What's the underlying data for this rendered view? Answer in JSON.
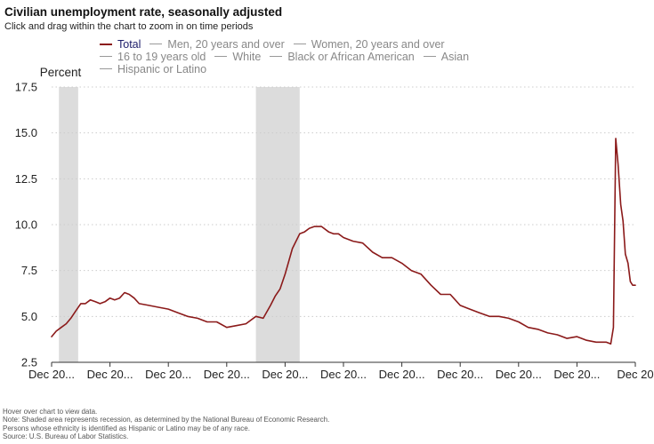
{
  "header": {
    "title": "Civilian unemployment rate, seasonally adjusted",
    "subtitle": "Click and drag within the chart to zoom in on time periods"
  },
  "legend": {
    "rows": [
      [
        {
          "label": "Total",
          "active": true
        },
        {
          "label": "Men, 20 years and over",
          "active": false
        },
        {
          "label": "Women, 20 years and over",
          "active": false
        }
      ],
      [
        {
          "label": "16 to 19 years old",
          "active": false
        },
        {
          "label": "White",
          "active": false
        },
        {
          "label": "Black or African American",
          "active": false
        },
        {
          "label": "Asian",
          "active": false
        }
      ],
      [
        {
          "label": "Hispanic or Latino",
          "active": false
        }
      ]
    ]
  },
  "colors": {
    "series_total": "#8b1a1a",
    "recession_band": "#dcdcdc",
    "gridline": "#cccccc",
    "axis": "#333333",
    "legend_active_text": "#1f1f6b",
    "legend_inactive_text": "#888888"
  },
  "chart_data": {
    "type": "line",
    "ylabel": "Percent",
    "ylim": [
      2.5,
      17.5
    ],
    "yticks": [
      2.5,
      5.0,
      7.5,
      10.0,
      12.5,
      15.0,
      17.5
    ],
    "ytick_labels": [
      "2.5",
      "5.0",
      "7.5",
      "10.0",
      "12.5",
      "15.0",
      "17.5"
    ],
    "xlim": [
      2000.92,
      2020.92
    ],
    "xticks": [
      2000.92,
      2002.92,
      2004.92,
      2006.92,
      2008.92,
      2010.92,
      2012.92,
      2014.92,
      2016.92,
      2018.92,
      2020.92
    ],
    "xtick_labels": [
      "Dec 20...",
      "Dec 20...",
      "Dec 20...",
      "Dec 20...",
      "Dec 20...",
      "Dec 20...",
      "Dec 20...",
      "Dec 20...",
      "Dec 20...",
      "Dec 20...",
      "Dec 20"
    ],
    "grid": true,
    "recessions": [
      [
        2001.17,
        2001.83
      ],
      [
        2007.92,
        2009.42
      ]
    ],
    "series": [
      {
        "name": "Total",
        "x": [
          2000.92,
          2001.08,
          2001.25,
          2001.42,
          2001.58,
          2001.75,
          2001.92,
          2002.08,
          2002.25,
          2002.42,
          2002.58,
          2002.75,
          2002.92,
          2003.08,
          2003.25,
          2003.42,
          2003.58,
          2003.75,
          2003.92,
          2004.25,
          2004.58,
          2004.92,
          2005.25,
          2005.58,
          2005.92,
          2006.25,
          2006.58,
          2006.92,
          2007.25,
          2007.58,
          2007.92,
          2008.17,
          2008.42,
          2008.58,
          2008.75,
          2008.92,
          2009.17,
          2009.42,
          2009.58,
          2009.75,
          2009.92,
          2010.17,
          2010.42,
          2010.58,
          2010.75,
          2010.92,
          2011.25,
          2011.58,
          2011.92,
          2012.25,
          2012.58,
          2012.92,
          2013.25,
          2013.58,
          2013.92,
          2014.25,
          2014.58,
          2014.92,
          2015.25,
          2015.58,
          2015.92,
          2016.25,
          2016.58,
          2016.92,
          2017.25,
          2017.58,
          2017.92,
          2018.25,
          2018.58,
          2018.92,
          2019.25,
          2019.58,
          2019.92,
          2020.08,
          2020.17,
          2020.25,
          2020.33,
          2020.42,
          2020.5,
          2020.58,
          2020.67,
          2020.75,
          2020.83,
          2020.92
        ],
        "y": [
          3.9,
          4.2,
          4.4,
          4.6,
          4.9,
          5.3,
          5.7,
          5.7,
          5.9,
          5.8,
          5.7,
          5.8,
          6.0,
          5.9,
          6.0,
          6.3,
          6.2,
          6.0,
          5.7,
          5.6,
          5.5,
          5.4,
          5.2,
          5.0,
          4.9,
          4.7,
          4.7,
          4.4,
          4.5,
          4.6,
          5.0,
          4.9,
          5.6,
          6.1,
          6.5,
          7.3,
          8.7,
          9.5,
          9.6,
          9.8,
          9.9,
          9.9,
          9.6,
          9.5,
          9.5,
          9.3,
          9.1,
          9.0,
          8.5,
          8.2,
          8.2,
          7.9,
          7.5,
          7.3,
          6.7,
          6.2,
          6.2,
          5.6,
          5.4,
          5.2,
          5.0,
          5.0,
          4.9,
          4.7,
          4.4,
          4.3,
          4.1,
          4.0,
          3.8,
          3.9,
          3.7,
          3.6,
          3.6,
          3.5,
          4.4,
          14.7,
          13.3,
          11.1,
          10.2,
          8.4,
          7.9,
          6.9,
          6.7,
          6.7
        ]
      }
    ]
  },
  "footnotes": [
    "Hover over chart to view data.",
    "Note: Shaded area represents recession, as determined by the National Bureau of Economic Research.",
    "Persons whose ethnicity is identified as Hispanic or Latino may be of any race.",
    "Source: U.S. Bureau of Labor Statistics."
  ]
}
